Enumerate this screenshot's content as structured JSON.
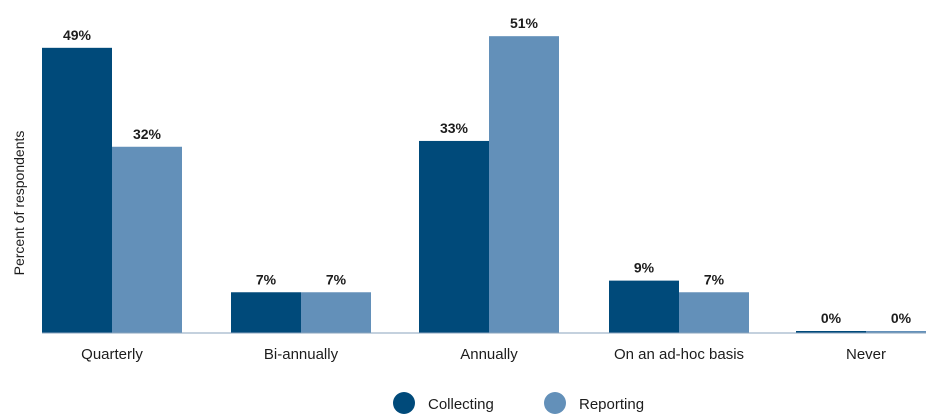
{
  "chart_data": {
    "type": "bar",
    "categories": [
      "Quarterly",
      "Bi-annually",
      "Annually",
      "On an ad-hoc basis",
      "Never"
    ],
    "series": [
      {
        "name": "Collecting",
        "values": [
          49,
          7,
          33,
          9,
          0
        ],
        "color": "#004a7a"
      },
      {
        "name": "Reporting",
        "values": [
          32,
          7,
          51,
          7,
          0
        ],
        "color": "#6390b9"
      }
    ],
    "value_suffix": "%",
    "ylabel": "Percent of respondents",
    "xlabel": "",
    "ylim": [
      0,
      55
    ],
    "grid": false,
    "legend_position": "bottom-center",
    "axis_color": "#8aa3bd"
  }
}
